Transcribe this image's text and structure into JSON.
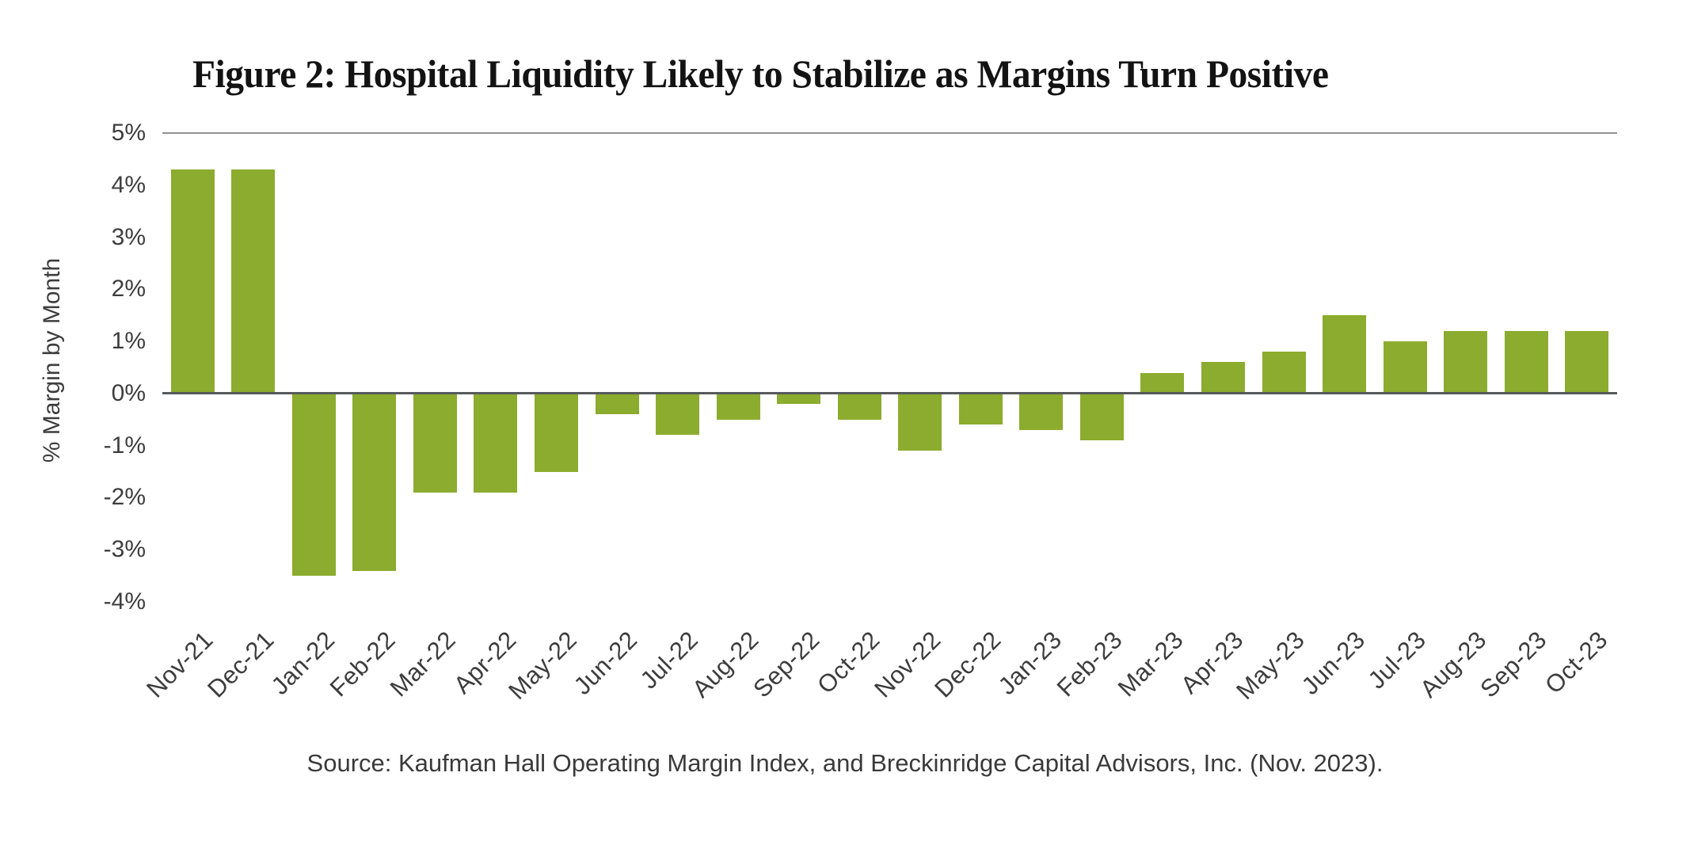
{
  "figure": {
    "title": "Figure 2: Hospital Liquidity Likely to Stabilize as Margins Turn Positive",
    "source": "Source: Kaufman Hall Operating Margin Index, and Breckinridge Capital Advisors, Inc. (Nov. 2023)."
  },
  "chart_data": {
    "type": "bar",
    "title": "Figure 2: Hospital Liquidity Likely to Stabilize as Margins Turn Positive",
    "xlabel": "",
    "ylabel": "% Margin by Month",
    "categories": [
      "Nov-21",
      "Dec-21",
      "Jan-22",
      "Feb-22",
      "Mar-22",
      "Apr-22",
      "May-22",
      "Jun-22",
      "Jul-22",
      "Aug-22",
      "Sep-22",
      "Oct-22",
      "Nov-22",
      "Dec-22",
      "Jan-23",
      "Feb-23",
      "Mar-23",
      "Apr-23",
      "May-23",
      "Jun-23",
      "Jul-23",
      "Aug-23",
      "Sep-23",
      "Oct-23"
    ],
    "values": [
      4.3,
      4.3,
      -3.5,
      -3.4,
      -1.9,
      -1.9,
      -1.5,
      -0.4,
      -0.8,
      -0.5,
      -0.2,
      -0.5,
      -1.1,
      -0.6,
      -0.7,
      -0.9,
      0.4,
      0.6,
      0.8,
      1.5,
      1.0,
      1.2,
      1.2,
      1.2
    ],
    "ylim": [
      -4,
      5
    ],
    "ytick_labels": [
      "5%",
      "4%",
      "3%",
      "2%",
      "1%",
      "0%",
      "-1%",
      "-2%",
      "-3%",
      "-4%"
    ],
    "xtick_rotation_deg": 45,
    "grid": "single gridline at 5% top; solid zero axis line; no other gridlines",
    "legend": "none",
    "colors": {
      "bar": "#8BAC2E",
      "zero_axis": "#565A5C",
      "top_gridline": "#8F9194",
      "tick_text": "#3D3D3D",
      "title_text": "#131313"
    }
  }
}
